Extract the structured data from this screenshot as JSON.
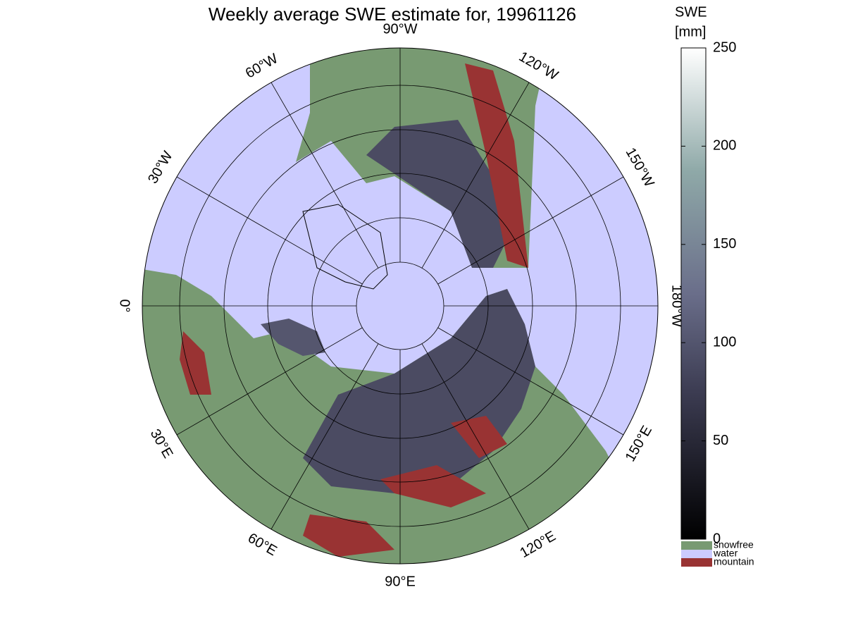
{
  "title": "Weekly average SWE estimate for, 19961126",
  "map": {
    "meridian_labels": [
      "90°W",
      "120°W",
      "150°W",
      "180°W",
      "150°E",
      "120°E",
      "90°E",
      "60°E",
      "30°E",
      "0°",
      "30°W",
      "60°W"
    ]
  },
  "colorbar": {
    "title": [
      "SWE",
      "[mm]"
    ],
    "lim": [
      0,
      250
    ],
    "ticks": [
      0,
      50,
      100,
      150,
      200,
      250
    ]
  },
  "legend": [
    {
      "label": "snowfree",
      "color": "#789a72"
    },
    {
      "label": "water",
      "color": "#ccccff"
    },
    {
      "label": "mountain",
      "color": "#993333"
    }
  ]
}
